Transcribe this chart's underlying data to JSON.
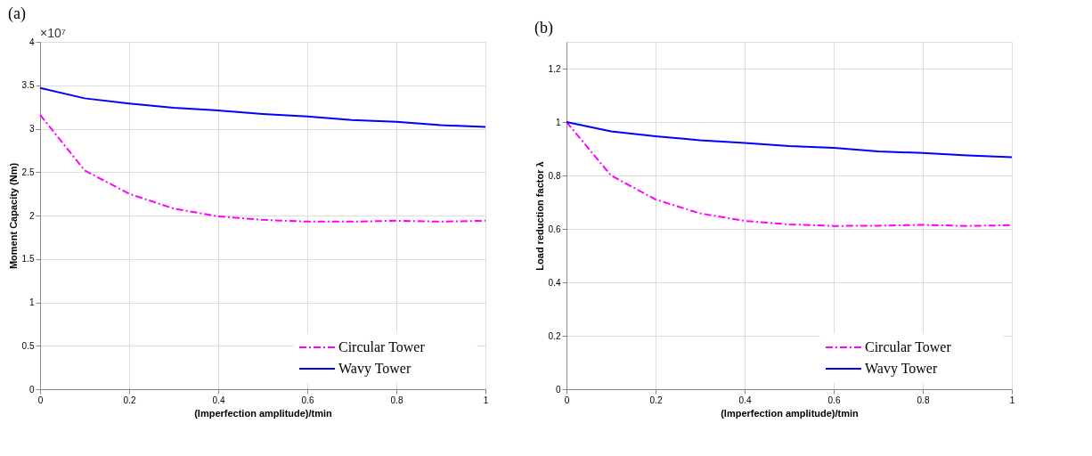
{
  "chart_data": [
    {
      "type": "line",
      "title": "(a)",
      "xlabel": "(Imperfection amplitude)/tmin",
      "ylabel": "Moment Capacity (Nm)",
      "annotations": [
        "×10⁷"
      ],
      "x": [
        0,
        0.1,
        0.2,
        0.3,
        0.4,
        0.5,
        0.6,
        0.7,
        0.8,
        0.9,
        1
      ],
      "series": [
        {
          "name": "Circular Tower",
          "color": "#ff00ff",
          "line_style": "dashed",
          "values": [
            3.16,
            2.52,
            2.25,
            2.08,
            1.99,
            1.95,
            1.93,
            1.93,
            1.94,
            1.93,
            1.94
          ]
        },
        {
          "name": "Wavy Tower",
          "color": "#0000ff",
          "line_style": "solid",
          "values": [
            3.47,
            3.35,
            3.29,
            3.24,
            3.21,
            3.17,
            3.14,
            3.1,
            3.08,
            3.04,
            3.02
          ]
        }
      ],
      "xlim": [
        0,
        1
      ],
      "xticks": [
        0,
        0.2,
        0.4,
        0.6,
        0.8,
        1
      ],
      "ylim": [
        0,
        4
      ],
      "yticks": [
        0,
        0.5,
        1,
        1.5,
        2,
        2.5,
        3,
        3.5,
        4
      ],
      "grid": true,
      "legend": "bottom right",
      "marker": "none"
    },
    {
      "type": "line",
      "title": "(b)",
      "xlabel": "(Imperfection amplitude)/tmin",
      "ylabel": "Load reduction factor λ",
      "x": [
        0,
        0.1,
        0.2,
        0.3,
        0.4,
        0.5,
        0.6,
        0.7,
        0.8,
        0.9,
        1
      ],
      "series": [
        {
          "name": "Circular Tower",
          "color": "#ff00ff",
          "line_style": "dashed",
          "values": [
            1.0,
            0.8,
            0.71,
            0.658,
            0.63,
            0.617,
            0.611,
            0.612,
            0.615,
            0.611,
            0.614
          ]
        },
        {
          "name": "Wavy Tower",
          "color": "#0000ff",
          "line_style": "solid",
          "values": [
            1.0,
            0.965,
            0.947,
            0.932,
            0.922,
            0.91,
            0.903,
            0.89,
            0.884,
            0.875,
            0.868
          ]
        }
      ],
      "xlim": [
        0,
        1
      ],
      "xticks": [
        0,
        0.2,
        0.4,
        0.6,
        0.8,
        1
      ],
      "ylim": [
        0,
        1.3
      ],
      "yticks": [
        0,
        0.2,
        0.4,
        0.6,
        0.8,
        1,
        1.2
      ],
      "grid": true,
      "legend": "bottom right",
      "marker": "none"
    }
  ]
}
